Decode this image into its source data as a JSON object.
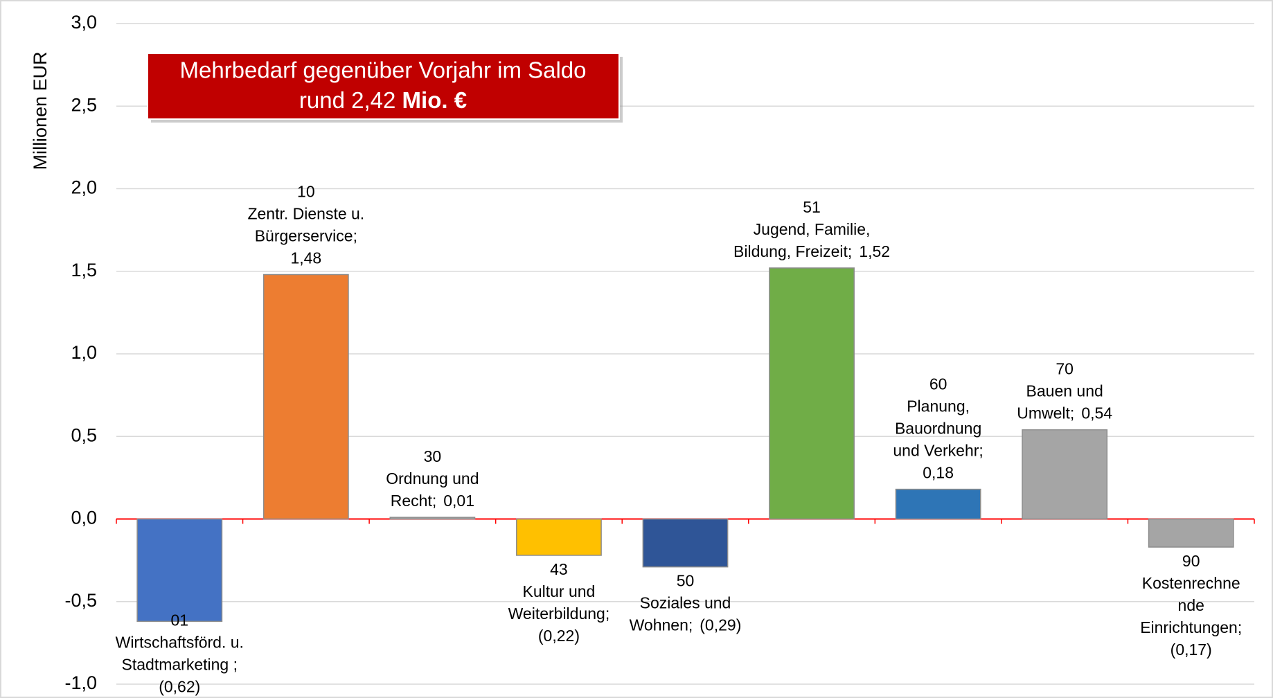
{
  "chart_data": {
    "type": "bar",
    "y_label": "Millionen EUR",
    "annotation": {
      "line1": "Mehrbedarf gegenüber Vorjahr im Saldo",
      "line2": "rund 2,42",
      "line2_bold": "Mio. €"
    },
    "categories": [
      [
        "01",
        "Wirtschaftsförd. u.",
        "Stadtmarketing ;"
      ],
      [
        "10",
        "Zentr. Dienste u.",
        "Bürgerservice;"
      ],
      [
        "30",
        "Ordnung und",
        "Recht;"
      ],
      [
        "43",
        "Kultur und",
        "Weiterbildung;"
      ],
      [
        "50",
        "Soziales und",
        "Wohnen;"
      ],
      [
        "51",
        "Jugend, Familie,",
        "Bildung, Freizeit;"
      ],
      [
        "60",
        "Planung,",
        "Bauordnung",
        "und Verkehr;"
      ],
      [
        "70",
        "Bauen und",
        "Umwelt;"
      ],
      [
        "90",
        "Kostenrechne",
        "nde",
        "Einrichtungen;"
      ]
    ],
    "values": [
      -0.62,
      1.48,
      0.01,
      -0.22,
      -0.29,
      1.52,
      0.18,
      0.54,
      -0.17
    ],
    "value_labels": [
      "(0,62)",
      "1,48",
      "0,01",
      "(0,22)",
      "(0,29)",
      "1,52",
      "0,18",
      "0,54",
      "(0,17)"
    ],
    "colors": [
      "#4472c4",
      "#ed7d31",
      "#a5a5a5",
      "#ffc000",
      "#2f5597",
      "#70ad47",
      "#2e75b6",
      "#a5a5a5",
      "#a5a5a5"
    ],
    "ylim": [
      -1.0,
      3.0
    ],
    "yticks": [
      {
        "value": -1.0,
        "label": "-1,0"
      },
      {
        "value": -0.5,
        "label": "-0,5"
      },
      {
        "value": 0.0,
        "label": "0,0"
      },
      {
        "value": 0.5,
        "label": "0,5"
      },
      {
        "value": 1.0,
        "label": "1,0"
      },
      {
        "value": 1.5,
        "label": "1,5"
      },
      {
        "value": 2.0,
        "label": "2,0"
      },
      {
        "value": 2.5,
        "label": "2,5"
      },
      {
        "value": 3.0,
        "label": "3,0"
      }
    ],
    "grid": true
  }
}
